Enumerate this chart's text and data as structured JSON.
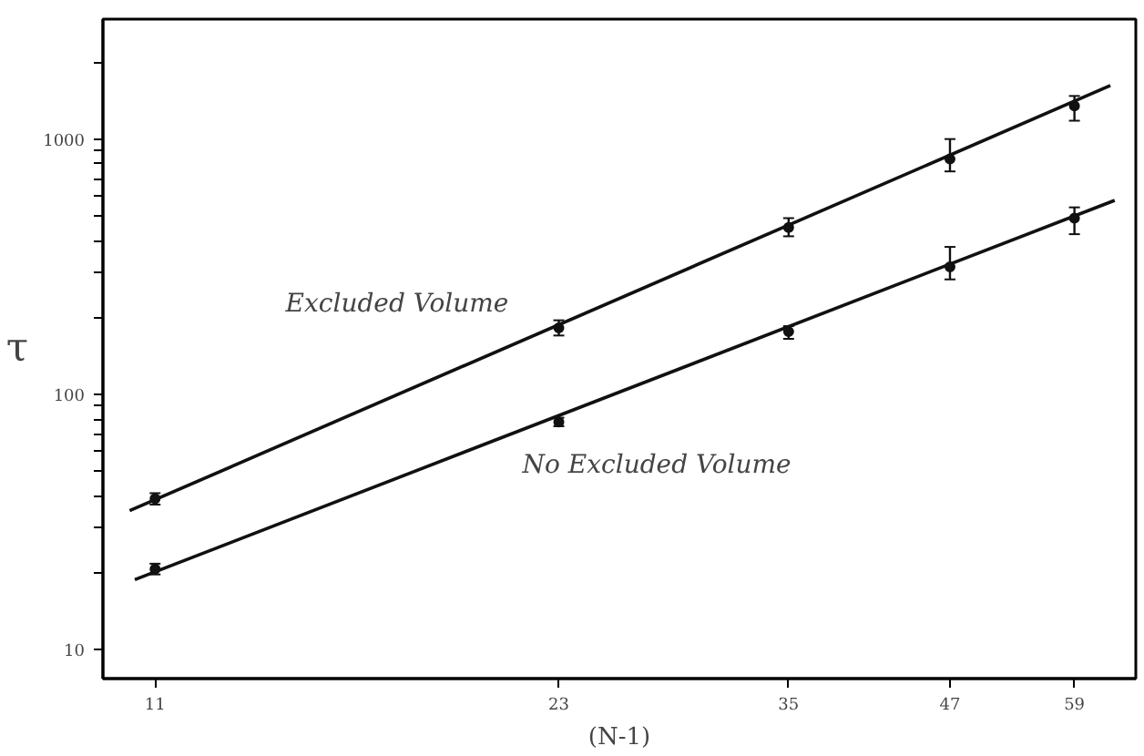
{
  "chart_data": {
    "type": "scatter",
    "xlabel": "(N-1)",
    "ylabel": "τ",
    "log": "xy",
    "grid": false,
    "xlim": [
      10,
      66
    ],
    "ylim": [
      7.7,
      2950
    ],
    "xticks": [
      11,
      23,
      35,
      47,
      59
    ],
    "yticks": [
      10,
      {
        "value": 20,
        "label": null
      },
      {
        "value": 30,
        "label": null
      },
      {
        "value": 40,
        "label": null
      },
      {
        "value": 50,
        "label": null
      },
      {
        "value": 60,
        "label": null
      },
      {
        "value": 70,
        "label": null
      },
      {
        "value": 80,
        "label": null
      },
      {
        "value": 90,
        "label": null
      },
      100,
      {
        "value": 200,
        "label": null
      },
      {
        "value": 300,
        "label": null
      },
      {
        "value": 400,
        "label": null
      },
      {
        "value": 500,
        "label": null
      },
      {
        "value": 600,
        "label": null
      },
      {
        "value": 700,
        "label": null
      },
      {
        "value": 800,
        "label": null
      },
      {
        "value": 900,
        "label": null
      },
      1000,
      {
        "value": 2000,
        "label": null
      }
    ],
    "series": [
      {
        "name": "Excluded Volume",
        "color": "#111111",
        "marker": "circle",
        "x": [
          11,
          23,
          35,
          47,
          59
        ],
        "values": [
          39,
          182,
          450,
          835,
          1350
        ],
        "errors": [
          2,
          [
            170,
            195
          ],
          [
            416,
            490
          ],
          [
            747,
            1000
          ],
          [
            1180,
            1475
          ]
        ]
      },
      {
        "name": "No Excluded Volume",
        "color": "#111111",
        "marker": "circle",
        "x": [
          11,
          23,
          35,
          47,
          59
        ],
        "values": [
          20.7,
          78,
          176,
          316,
          490
        ],
        "errors": [
          1,
          3,
          [
            165,
            185
          ],
          [
            282,
            378
          ],
          [
            424,
            540
          ]
        ]
      },
      {
        "type": "line",
        "color": "#111111",
        "x": [
          10.5,
          63
        ],
        "values": [
          35,
          1620
        ]
      },
      {
        "type": "line",
        "color": "#111111",
        "x": [
          10.6,
          63.5
        ],
        "values": [
          18.8,
          575
        ]
      }
    ]
  }
}
